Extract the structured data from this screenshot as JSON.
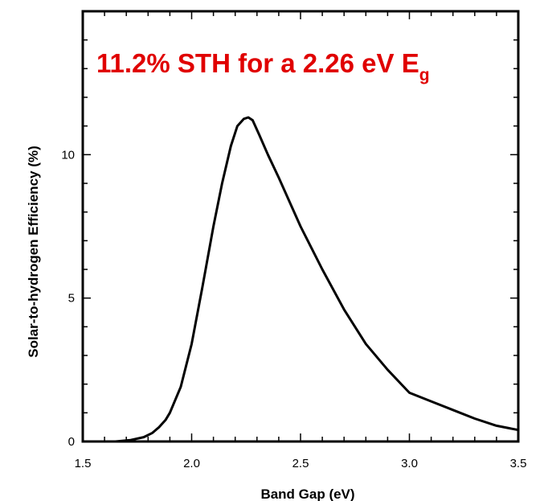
{
  "chart_data": {
    "type": "line",
    "title": "",
    "xlabel": "Band Gap (eV)",
    "ylabel": "Solar-to-hydrogen Efficiency  (%)",
    "xlim": [
      1.5,
      3.5
    ],
    "ylim": [
      0,
      15
    ],
    "xticks": [
      "1.5",
      "2.0",
      "2.5",
      "3.0",
      "3.5"
    ],
    "yticks": [
      "0",
      "5",
      "10"
    ],
    "grid": false,
    "annotation": {
      "main": "11.2% STH for a 2.26 eV E",
      "sub": "g",
      "color": "#e00000"
    },
    "series": [
      {
        "color": "#000000",
        "x": [
          1.55,
          1.65,
          1.72,
          1.78,
          1.82,
          1.85,
          1.88,
          1.9,
          1.95,
          2.0,
          2.05,
          2.1,
          2.14,
          2.18,
          2.21,
          2.24,
          2.26,
          2.28,
          2.31,
          2.35,
          2.4,
          2.5,
          2.6,
          2.7,
          2.8,
          2.9,
          3.0,
          3.1,
          3.2,
          3.3,
          3.4,
          3.5
        ],
        "y": [
          0.0,
          0.0,
          0.05,
          0.15,
          0.3,
          0.5,
          0.75,
          1.0,
          1.9,
          3.4,
          5.4,
          7.5,
          9.0,
          10.3,
          11.0,
          11.25,
          11.3,
          11.2,
          10.7,
          10.0,
          9.2,
          7.5,
          6.0,
          4.6,
          3.4,
          2.5,
          1.7,
          1.4,
          1.1,
          0.8,
          0.55,
          0.4
        ]
      }
    ]
  }
}
